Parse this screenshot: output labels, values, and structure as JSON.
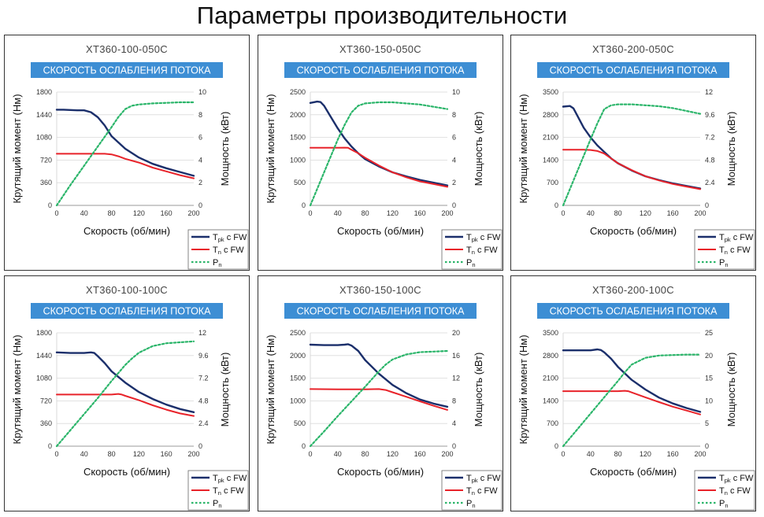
{
  "page": {
    "title": "Параметры производительности"
  },
  "colors": {
    "tpk": "#1b2f6b",
    "tn": "#e8232a",
    "pn": "#2bb56a",
    "banner": "#3d8ed4"
  },
  "legend": {
    "tpk_main": "T",
    "tpk_sub": "pk",
    "tpk_tail": " с FW",
    "tn_main": "T",
    "tn_sub": "n",
    "tn_tail": " с FW",
    "pn_main": "P",
    "pn_sub": "n"
  },
  "chart_data": [
    {
      "type": "line",
      "title": "XT360-100-050C",
      "banner": "СКОРОСТЬ ОСЛАБЛЕНИЯ ПОТОКА",
      "xlabel": "Скорость (об/мин)",
      "ylabel": "Крутящий момент (Нм)",
      "y2label": "Мощность (кВт)",
      "x_ticks": [
        "0",
        "40",
        "80",
        "120",
        "160",
        "200"
      ],
      "xlim": [
        0,
        200
      ],
      "y_ticks": [
        "0",
        "360",
        "720",
        "1080",
        "1440",
        "1800"
      ],
      "ylim": [
        0,
        1800
      ],
      "y2_ticks": [
        "0",
        "2",
        "4",
        "6",
        "8",
        "10"
      ],
      "y2lim": [
        0,
        10
      ],
      "series": [
        {
          "name": "Tpk с FW",
          "axis": "left",
          "x": [
            0,
            10,
            20,
            30,
            40,
            50,
            60,
            70,
            80,
            100,
            120,
            140,
            160,
            180,
            200
          ],
          "y": [
            1520,
            1520,
            1515,
            1510,
            1510,
            1480,
            1400,
            1270,
            1100,
            900,
            760,
            660,
            590,
            530,
            470
          ]
        },
        {
          "name": "Tn с FW",
          "axis": "left",
          "x": [
            0,
            20,
            40,
            60,
            70,
            80,
            90,
            100,
            120,
            140,
            160,
            180,
            200
          ],
          "y": [
            820,
            820,
            820,
            820,
            820,
            810,
            780,
            740,
            680,
            600,
            540,
            480,
            430
          ]
        },
        {
          "name": "Pn",
          "axis": "right",
          "x": [
            0,
            20,
            40,
            60,
            80,
            90,
            100,
            110,
            120,
            140,
            160,
            180,
            200
          ],
          "y": [
            0,
            1.8,
            3.5,
            5.2,
            6.9,
            7.8,
            8.5,
            8.8,
            8.9,
            9.0,
            9.05,
            9.1,
            9.1
          ]
        }
      ]
    },
    {
      "type": "line",
      "title": "XT360-150-050C",
      "banner": "СКОРОСТЬ ОСЛАБЛЕНИЯ ПОТОКА",
      "xlabel": "Скорость (об/мин)",
      "ylabel": "Крутящий момент (Нм)",
      "y2label": "Мощность (кВт)",
      "x_ticks": [
        "0",
        "40",
        "80",
        "120",
        "160",
        "200"
      ],
      "xlim": [
        0,
        200
      ],
      "y_ticks": [
        "0",
        "500",
        "1000",
        "1500",
        "2000",
        "2500"
      ],
      "ylim": [
        0,
        2500
      ],
      "y2_ticks": [
        "0",
        "2",
        "4",
        "6",
        "8",
        "10"
      ],
      "y2lim": [
        0,
        10
      ],
      "series": [
        {
          "name": "Tpk с FW",
          "axis": "left",
          "x": [
            0,
            10,
            15,
            20,
            30,
            40,
            50,
            60,
            70,
            80,
            100,
            120,
            140,
            160,
            180,
            200
          ],
          "y": [
            2260,
            2290,
            2280,
            2200,
            1950,
            1700,
            1480,
            1300,
            1150,
            1020,
            860,
            730,
            640,
            560,
            500,
            440
          ]
        },
        {
          "name": "Tn с FW",
          "axis": "left",
          "x": [
            0,
            20,
            40,
            50,
            55,
            60,
            70,
            80,
            100,
            120,
            140,
            160,
            180,
            200
          ],
          "y": [
            1270,
            1270,
            1270,
            1275,
            1270,
            1230,
            1150,
            1050,
            880,
            730,
            620,
            530,
            470,
            410
          ]
        },
        {
          "name": "Pn",
          "axis": "right",
          "x": [
            0,
            20,
            40,
            50,
            60,
            70,
            80,
            100,
            120,
            140,
            160,
            180,
            200
          ],
          "y": [
            0,
            2.9,
            5.8,
            7.1,
            8.2,
            8.8,
            9.0,
            9.1,
            9.1,
            9.0,
            8.9,
            8.7,
            8.5
          ]
        }
      ]
    },
    {
      "type": "line",
      "title": "XT360-200-050C",
      "banner": "СКОРОСТЬ ОСЛАБЛЕНИЯ ПОТОКА",
      "xlabel": "Скорость (об/мин)",
      "ylabel": "Крутящий момент (Нм)",
      "y2label": "Мощность (кВт)",
      "x_ticks": [
        "0",
        "40",
        "80",
        "120",
        "160",
        "200"
      ],
      "xlim": [
        0,
        200
      ],
      "y_ticks": [
        "0",
        "700",
        "1400",
        "2100",
        "2800",
        "3500"
      ],
      "ylim": [
        0,
        3500
      ],
      "y2_ticks": [
        "0",
        "2.4",
        "4.8",
        "7.2",
        "9.6",
        "12"
      ],
      "y2lim": [
        0,
        12
      ],
      "series": [
        {
          "name": "Tpk с FW",
          "axis": "left",
          "x": [
            0,
            10,
            15,
            20,
            30,
            40,
            50,
            60,
            70,
            80,
            100,
            120,
            140,
            160,
            180,
            200
          ],
          "y": [
            3050,
            3070,
            3000,
            2800,
            2400,
            2100,
            1850,
            1650,
            1450,
            1300,
            1080,
            900,
            780,
            680,
            600,
            520
          ]
        },
        {
          "name": "Tn с FW",
          "axis": "left",
          "x": [
            0,
            20,
            30,
            40,
            50,
            60,
            70,
            80,
            100,
            120,
            140,
            160,
            180,
            200
          ],
          "y": [
            1720,
            1720,
            1720,
            1710,
            1680,
            1600,
            1450,
            1300,
            1090,
            900,
            770,
            660,
            580,
            500
          ]
        },
        {
          "name": "Pn",
          "axis": "right",
          "x": [
            0,
            20,
            40,
            50,
            60,
            70,
            80,
            100,
            120,
            140,
            160,
            180,
            200
          ],
          "y": [
            0,
            3.5,
            7.0,
            8.7,
            10.2,
            10.6,
            10.7,
            10.7,
            10.6,
            10.5,
            10.3,
            10.0,
            9.7
          ]
        }
      ]
    },
    {
      "type": "line",
      "title": "XT360-100-100C",
      "banner": "СКОРОСТЬ ОСЛАБЛЕНИЯ ПОТОКА",
      "xlabel": "Скорость (об/мин)",
      "ylabel": "Крутящий момент (Нм)",
      "y2label": "Мощность (кВт)",
      "x_ticks": [
        "0",
        "40",
        "80",
        "120",
        "160",
        "200"
      ],
      "xlim": [
        0,
        200
      ],
      "y_ticks": [
        "0",
        "360",
        "720",
        "1080",
        "1440",
        "1800"
      ],
      "ylim": [
        0,
        1800
      ],
      "y2_ticks": [
        "0",
        "2.4",
        "4.8",
        "7.2",
        "9.6",
        "12"
      ],
      "y2lim": [
        0,
        12
      ],
      "series": [
        {
          "name": "Tpk с FW",
          "axis": "left",
          "x": [
            0,
            20,
            40,
            50,
            55,
            60,
            70,
            80,
            100,
            120,
            140,
            160,
            180,
            200
          ],
          "y": [
            1490,
            1480,
            1480,
            1490,
            1480,
            1430,
            1320,
            1190,
            1010,
            860,
            750,
            660,
            590,
            540
          ]
        },
        {
          "name": "Tn с FW",
          "axis": "left",
          "x": [
            0,
            20,
            40,
            60,
            80,
            90,
            95,
            100,
            120,
            140,
            160,
            180,
            200
          ],
          "y": [
            820,
            820,
            820,
            820,
            820,
            830,
            820,
            800,
            730,
            650,
            580,
            520,
            480
          ]
        },
        {
          "name": "Pn",
          "axis": "right",
          "x": [
            0,
            20,
            40,
            60,
            80,
            100,
            110,
            120,
            140,
            160,
            180,
            200
          ],
          "y": [
            0,
            1.7,
            3.4,
            5.1,
            6.9,
            8.6,
            9.3,
            9.9,
            10.6,
            10.9,
            11.0,
            11.1
          ]
        }
      ]
    },
    {
      "type": "line",
      "title": "XT360-150-100C",
      "banner": "СКОРОСТЬ ОСЛАБЛЕНИЯ ПОТОКА",
      "xlabel": "Скорость (об/мин)",
      "ylabel": "Крутящий момент (Нм)",
      "y2label": "Мощность (кВт)",
      "x_ticks": [
        "0",
        "40",
        "80",
        "120",
        "160",
        "200"
      ],
      "xlim": [
        0,
        200
      ],
      "y_ticks": [
        "0",
        "500",
        "1000",
        "1500",
        "2000",
        "2500"
      ],
      "ylim": [
        0,
        2500
      ],
      "y2_ticks": [
        "0",
        "4",
        "8",
        "12",
        "16",
        "20"
      ],
      "y2lim": [
        0,
        20
      ],
      "series": [
        {
          "name": "Tpk с FW",
          "axis": "left",
          "x": [
            0,
            20,
            40,
            50,
            55,
            60,
            70,
            80,
            100,
            120,
            140,
            160,
            180,
            200
          ],
          "y": [
            2240,
            2230,
            2230,
            2240,
            2250,
            2220,
            2100,
            1900,
            1600,
            1350,
            1170,
            1030,
            940,
            870
          ]
        },
        {
          "name": "Tn с FW",
          "axis": "left",
          "x": [
            0,
            40,
            80,
            100,
            110,
            120,
            140,
            160,
            180,
            200
          ],
          "y": [
            1260,
            1255,
            1255,
            1260,
            1240,
            1190,
            1090,
            990,
            890,
            800
          ]
        },
        {
          "name": "Pn",
          "axis": "right",
          "x": [
            0,
            20,
            40,
            60,
            80,
            100,
            110,
            120,
            140,
            160,
            180,
            200
          ],
          "y": [
            0,
            2.6,
            5.3,
            7.9,
            10.5,
            13.2,
            14.4,
            15.3,
            16.2,
            16.6,
            16.7,
            16.8
          ]
        }
      ]
    },
    {
      "type": "line",
      "title": "XT360-200-100C",
      "banner": "СКОРОСТЬ ОСЛАБЛЕНИЯ ПОТОКА",
      "xlabel": "Скорость (об/мин)",
      "ylabel": "Крутящий момент (Нм)",
      "y2label": "Мощность (кВт)",
      "x_ticks": [
        "0",
        "40",
        "80",
        "120",
        "160",
        "200"
      ],
      "xlim": [
        0,
        200
      ],
      "y_ticks": [
        "0",
        "700",
        "1400",
        "2100",
        "2800",
        "3500"
      ],
      "ylim": [
        0,
        3500
      ],
      "y2_ticks": [
        "0",
        "5",
        "10",
        "15",
        "20",
        "25"
      ],
      "y2lim": [
        0,
        25
      ],
      "series": [
        {
          "name": "Tpk с FW",
          "axis": "left",
          "x": [
            0,
            20,
            40,
            50,
            55,
            60,
            70,
            80,
            100,
            120,
            140,
            160,
            180,
            200
          ],
          "y": [
            2960,
            2960,
            2960,
            2990,
            2970,
            2900,
            2700,
            2450,
            2050,
            1750,
            1500,
            1320,
            1180,
            1060
          ]
        },
        {
          "name": "Tn с FW",
          "axis": "left",
          "x": [
            0,
            40,
            80,
            90,
            95,
            100,
            120,
            140,
            160,
            180,
            200
          ],
          "y": [
            1700,
            1700,
            1700,
            1710,
            1700,
            1660,
            1510,
            1360,
            1220,
            1100,
            980
          ]
        },
        {
          "name": "Pn",
          "axis": "right",
          "x": [
            0,
            20,
            40,
            60,
            70,
            80,
            90,
            100,
            120,
            140,
            160,
            180,
            200
          ],
          "y": [
            0,
            3.6,
            7.2,
            10.8,
            12.6,
            14.4,
            16.3,
            18.0,
            19.5,
            20.0,
            20.1,
            20.2,
            20.2
          ]
        }
      ]
    }
  ]
}
